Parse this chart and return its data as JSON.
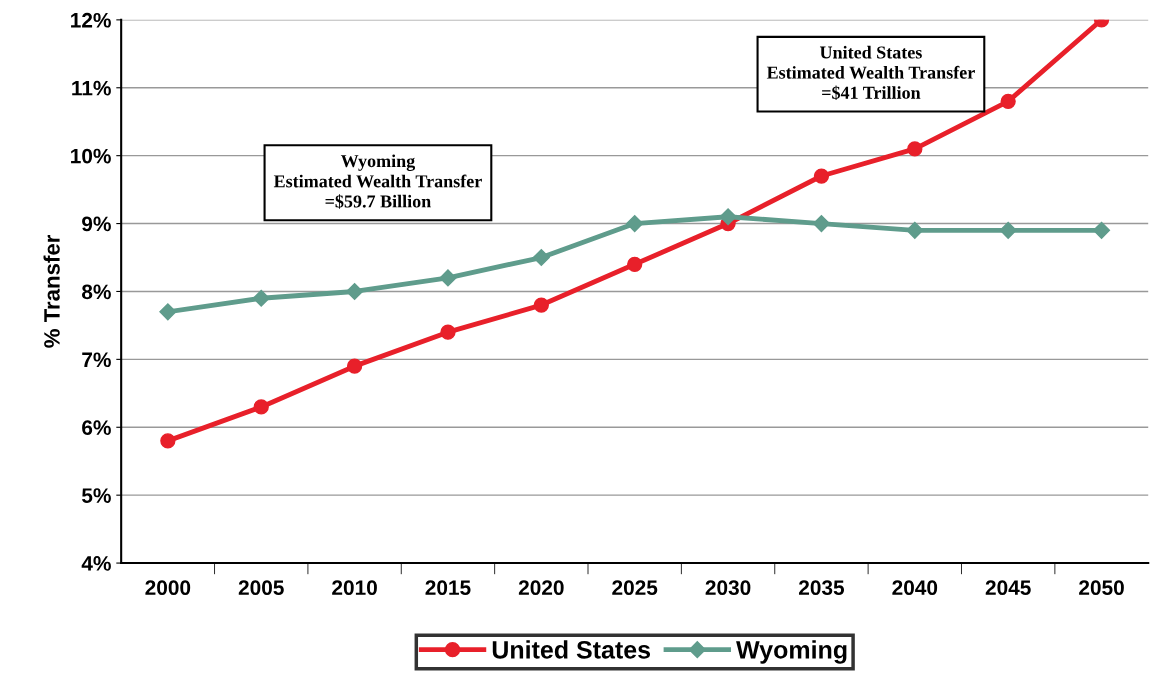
{
  "chart_data": {
    "type": "line",
    "ylabel": "% Transfer",
    "categories": [
      "2000",
      "2005",
      "2010",
      "2015",
      "2020",
      "2025",
      "2030",
      "2035",
      "2040",
      "2045",
      "2050"
    ],
    "series": [
      {
        "name": "United States",
        "color": "#e8202a",
        "marker": "circle",
        "values": [
          5.8,
          6.3,
          6.9,
          7.4,
          7.8,
          8.4,
          9.0,
          9.7,
          10.1,
          10.8,
          12.0
        ]
      },
      {
        "name": "Wyoming",
        "color": "#5f9c8c",
        "marker": "diamond",
        "values": [
          7.7,
          7.9,
          8.0,
          8.2,
          8.5,
          9.0,
          9.1,
          9.0,
          8.9,
          8.9,
          8.9
        ]
      }
    ],
    "ylim": [
      4,
      12
    ],
    "yticks": [
      {
        "value": 4,
        "label": "4%"
      },
      {
        "value": 5,
        "label": "5%"
      },
      {
        "value": 6,
        "label": "6%"
      },
      {
        "value": 7,
        "label": "7%"
      },
      {
        "value": 8,
        "label": "8%"
      },
      {
        "value": 9,
        "label": "9%"
      },
      {
        "value": 10,
        "label": "10%"
      },
      {
        "value": 11,
        "label": "11%"
      },
      {
        "value": 12,
        "label": "12%"
      }
    ],
    "grid": "y",
    "legend": "bottom",
    "annotations": [
      "Wyoming\nEstimated Wealth Transfer\n=$59.7 Billion",
      "United States\nEstimated Wealth Transfer\n=$41 Trillion"
    ]
  }
}
